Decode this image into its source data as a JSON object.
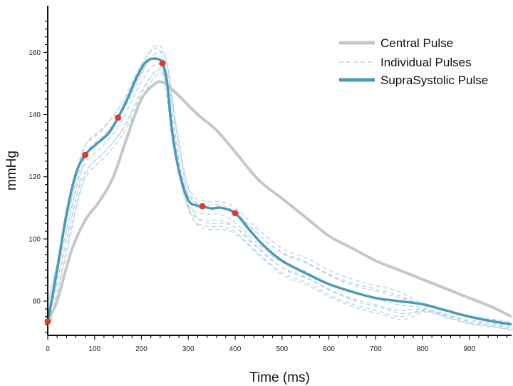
{
  "chart_data": {
    "type": "line",
    "xlabel": "Time (ms)",
    "ylabel": "mmHg",
    "xlim": [
      0,
      990
    ],
    "ylim": [
      69,
      175
    ],
    "x_ticks": [
      0,
      100,
      200,
      300,
      400,
      500,
      600,
      700,
      800,
      900
    ],
    "y_ticks": [
      80,
      100,
      120,
      140,
      160
    ],
    "grid": false,
    "legend_position": "top-right",
    "legend": [
      "Central Pulse",
      "Individual Pulses",
      "SupraSystolic Pulse"
    ],
    "series": [
      {
        "name": "Central Pulse",
        "color": "#c4c9c7",
        "style": "solid",
        "x": [
          0,
          20,
          50,
          80,
          110,
          140,
          170,
          200,
          230,
          250,
          280,
          320,
          360,
          400,
          450,
          500,
          550,
          600,
          650,
          700,
          750,
          800,
          850,
          900,
          950,
          990
        ],
        "y": [
          74,
          80,
          96,
          106,
          112,
          120,
          133,
          145,
          150,
          150,
          146,
          140,
          135,
          128,
          119,
          113,
          107,
          101,
          97,
          93,
          90,
          87,
          84,
          81,
          78,
          75
        ]
      },
      {
        "name": "Individual Pulses",
        "color": "#bcd5e6",
        "style": "dashed",
        "x": [
          0,
          30,
          60,
          80,
          120,
          160,
          200,
          230,
          250,
          270,
          290,
          310,
          340,
          370,
          400,
          450,
          500,
          550,
          600,
          650,
          700,
          750,
          800,
          850,
          900,
          950,
          990
        ],
        "y": [
          75,
          95,
          115,
          126,
          132,
          140,
          152,
          158,
          155,
          135,
          118,
          110,
          108,
          108,
          106,
          99,
          93,
          90,
          86,
          83,
          81,
          79,
          78,
          76,
          74,
          73,
          72
        ],
        "offsets": [
          0,
          3,
          -2,
          4,
          -4,
          2,
          -5,
          -3
        ]
      },
      {
        "name": "SupraSystolic Pulse",
        "color": "#4b9bb8",
        "style": "solid",
        "x": [
          0,
          20,
          40,
          60,
          80,
          100,
          130,
          150,
          170,
          190,
          210,
          230,
          245,
          255,
          265,
          280,
          300,
          320,
          330,
          350,
          370,
          400,
          430,
          460,
          500,
          550,
          600,
          650,
          700,
          750,
          800,
          850,
          900,
          950,
          990
        ],
        "y": [
          73.5,
          90,
          108,
          121,
          127,
          130,
          134,
          139,
          145,
          152,
          157,
          158,
          156.5,
          150,
          135,
          122,
          112.5,
          110.7,
          110.5,
          109.8,
          110,
          108.3,
          103,
          98,
          93,
          89,
          85.5,
          83,
          81,
          80,
          79,
          77,
          75,
          73.5,
          72.5
        ]
      }
    ],
    "markers": {
      "color": "#e03a2e",
      "points": [
        {
          "x": 0,
          "y": 73.5
        },
        {
          "x": 80,
          "y": 127
        },
        {
          "x": 150,
          "y": 139
        },
        {
          "x": 245,
          "y": 156.5
        },
        {
          "x": 330,
          "y": 110.5
        },
        {
          "x": 400,
          "y": 108.3
        }
      ]
    }
  }
}
